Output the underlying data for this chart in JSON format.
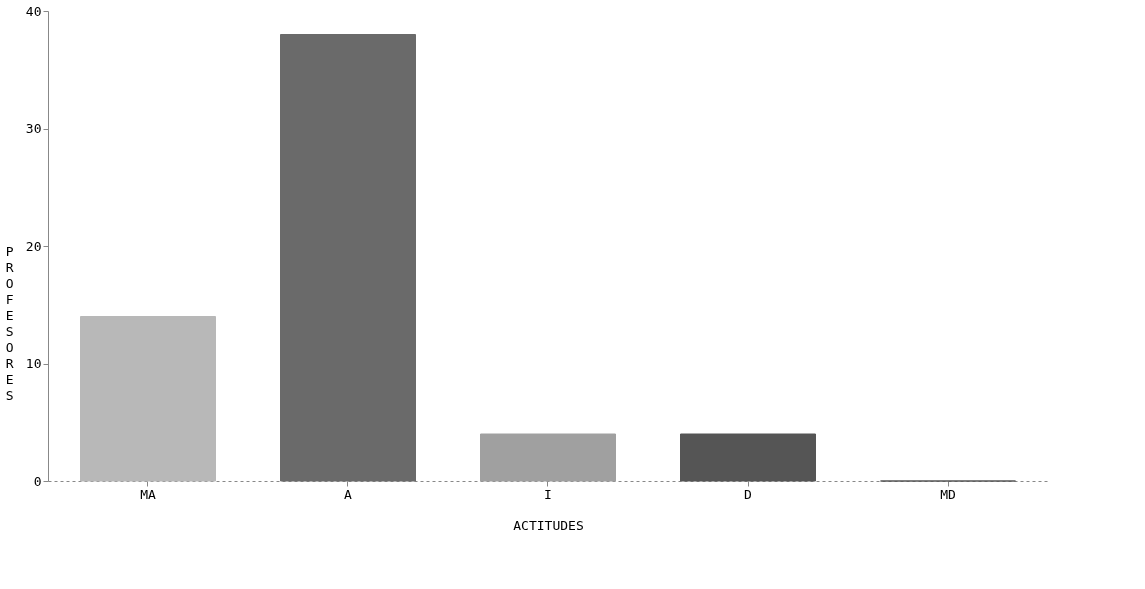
{
  "chart_data": {
    "type": "bar",
    "xlabel": "ACTITUDES",
    "ylabel": "PROFESORES",
    "categories": [
      "MA",
      "A",
      "I",
      "D",
      "MD"
    ],
    "values": [
      14,
      38,
      4,
      4,
      0
    ],
    "colors": [
      "#b8b8b8",
      "#6a6a6a",
      "#a0a0a0",
      "#555555",
      "#555555"
    ],
    "ylim": [
      0,
      40
    ],
    "yticks": [
      0,
      10,
      20,
      30,
      40
    ],
    "grid": false
  }
}
